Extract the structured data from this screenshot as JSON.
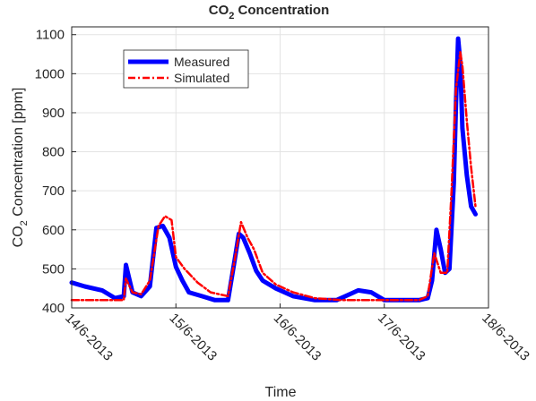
{
  "chart_data": {
    "type": "line",
    "title_main": "CO",
    "title_sub": "2",
    "title_rest": " Concentration",
    "xlabel": "Time",
    "ylabel_main": "CO",
    "ylabel_sub": "2",
    "ylabel_rest": " Concentration [ppm]",
    "xlim": [
      "14/6-2013 00:00",
      "18/6-2013 00:00"
    ],
    "ylim": [
      400,
      1120
    ],
    "x_tick_labels": [
      "14/6-2013",
      "15/6-2013",
      "16/6-2013",
      "17/6-2013",
      "18/6-2013"
    ],
    "y_ticks": [
      400,
      500,
      600,
      700,
      800,
      900,
      1000,
      1100
    ],
    "grid": true,
    "legend_position": "top-left",
    "series": [
      {
        "name": "Measured",
        "color": "#0000ff",
        "style": "solid",
        "x": [
          "14/6-2013 00:00",
          "14/6-2013 03:00",
          "14/6-2013 07:00",
          "14/6-2013 10:00",
          "14/6-2013 12:00",
          "14/6-2013 12:30",
          "14/6-2013 14:00",
          "14/6-2013 16:00",
          "14/6-2013 18:00",
          "14/6-2013 19:30",
          "14/6-2013 21:00",
          "14/6-2013 22:30",
          "15/6-2013 00:00",
          "15/6-2013 01:30",
          "15/6-2013 03:00",
          "15/6-2013 06:00",
          "15/6-2013 09:00",
          "15/6-2013 12:00",
          "15/6-2013 13:30",
          "15/6-2013 14:30",
          "15/6-2013 15:30",
          "15/6-2013 17:00",
          "15/6-2013 18:30",
          "15/6-2013 20:00",
          "15/6-2013 23:00",
          "16/6-2013 03:00",
          "16/6-2013 08:00",
          "16/6-2013 13:00",
          "16/6-2013 18:00",
          "16/6-2013 21:00",
          "17/6-2013 00:00",
          "17/6-2013 03:00",
          "17/6-2013 08:00",
          "17/6-2013 10:00",
          "17/6-2013 11:00",
          "17/6-2013 12:00",
          "17/6-2013 13:00",
          "17/6-2013 14:00",
          "17/6-2013 15:00",
          "17/6-2013 16:00",
          "17/6-2013 16:30",
          "17/6-2013 17:00",
          "17/6-2013 17:30",
          "17/6-2013 18:00",
          "17/6-2013 19:00",
          "17/6-2013 20:00",
          "17/6-2013 21:00"
        ],
        "values": [
          465,
          455,
          445,
          425,
          430,
          510,
          440,
          430,
          455,
          605,
          610,
          580,
          505,
          470,
          440,
          430,
          420,
          420,
          520,
          590,
          580,
          540,
          495,
          470,
          450,
          430,
          420,
          420,
          445,
          440,
          420,
          420,
          420,
          425,
          470,
          600,
          550,
          490,
          500,
          720,
          920,
          1090,
          1030,
          860,
          740,
          660,
          640
        ]
      },
      {
        "name": "Simulated",
        "color": "#ff0000",
        "style": "dashdot",
        "x": [
          "14/6-2013 00:00",
          "14/6-2013 06:00",
          "14/6-2013 10:00",
          "14/6-2013 12:00",
          "14/6-2013 12:30",
          "14/6-2013 14:00",
          "14/6-2013 16:00",
          "14/6-2013 18:00",
          "14/6-2013 20:00",
          "14/6-2013 21:30",
          "14/6-2013 23:00",
          "15/6-2013 00:00",
          "15/6-2013 02:00",
          "15/6-2013 05:00",
          "15/6-2013 08:00",
          "15/6-2013 12:00",
          "15/6-2013 13:30",
          "15/6-2013 15:00",
          "15/6-2013 16:30",
          "15/6-2013 18:00",
          "15/6-2013 20:00",
          "15/6-2013 23:00",
          "16/6-2013 03:00",
          "16/6-2013 08:00",
          "16/6-2013 14:00",
          "16/6-2013 20:00",
          "17/6-2013 02:00",
          "17/6-2013 08:00",
          "17/6-2013 10:00",
          "17/6-2013 11:30",
          "17/6-2013 13:00",
          "17/6-2013 14:30",
          "17/6-2013 15:30",
          "17/6-2013 16:30",
          "17/6-2013 17:30",
          "17/6-2013 18:00",
          "17/6-2013 19:00",
          "17/6-2013 20:00",
          "17/6-2013 21:00"
        ],
        "values": [
          420,
          420,
          420,
          420,
          475,
          440,
          435,
          470,
          610,
          635,
          625,
          530,
          500,
          465,
          440,
          430,
          520,
          620,
          580,
          550,
          490,
          460,
          440,
          425,
          420,
          420,
          420,
          420,
          430,
          540,
          490,
          490,
          700,
          960,
          1055,
          1020,
          880,
          760,
          660
        ]
      }
    ]
  }
}
